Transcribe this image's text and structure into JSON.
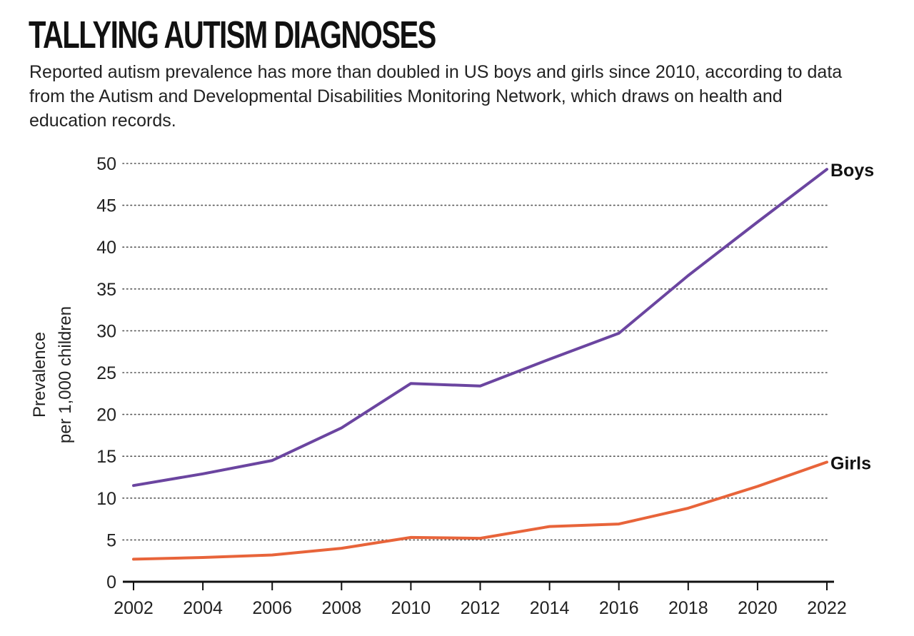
{
  "header": {
    "title": "TALLYING AUTISM DIAGNOSES",
    "subtitle": "Reported autism prevalence has more than doubled in US boys and girls since 2010, according to data from the Autism and Developmental Disabilities Monitoring Network, which draws on health and education records."
  },
  "chart_data": {
    "type": "line",
    "title": "TALLYING AUTISM DIAGNOSES",
    "xlabel": "",
    "ylabel_line1": "Prevalence",
    "ylabel_line2": "per 1,000 children",
    "ylim": [
      0,
      50
    ],
    "yticks": [
      "0",
      "5",
      "10",
      "15",
      "20",
      "25",
      "30",
      "35",
      "40",
      "45",
      "50"
    ],
    "x": [
      "2002",
      "2004",
      "2006",
      "2008",
      "2010",
      "2012",
      "2014",
      "2016",
      "2018",
      "2020",
      "2022"
    ],
    "grid": "horizontal dotted",
    "series": [
      {
        "name": "Boys",
        "color": "#6b45a0",
        "values": [
          11.5,
          12.9,
          14.5,
          18.4,
          23.7,
          23.4,
          26.6,
          29.7,
          36.6,
          43.0,
          49.3
        ]
      },
      {
        "name": "Girls",
        "color": "#e8643a",
        "values": [
          2.7,
          2.9,
          3.2,
          4.0,
          5.3,
          5.2,
          6.6,
          6.9,
          8.8,
          11.4,
          14.3
        ]
      }
    ],
    "axis_color": "#111111",
    "grid_color": "#555555"
  }
}
